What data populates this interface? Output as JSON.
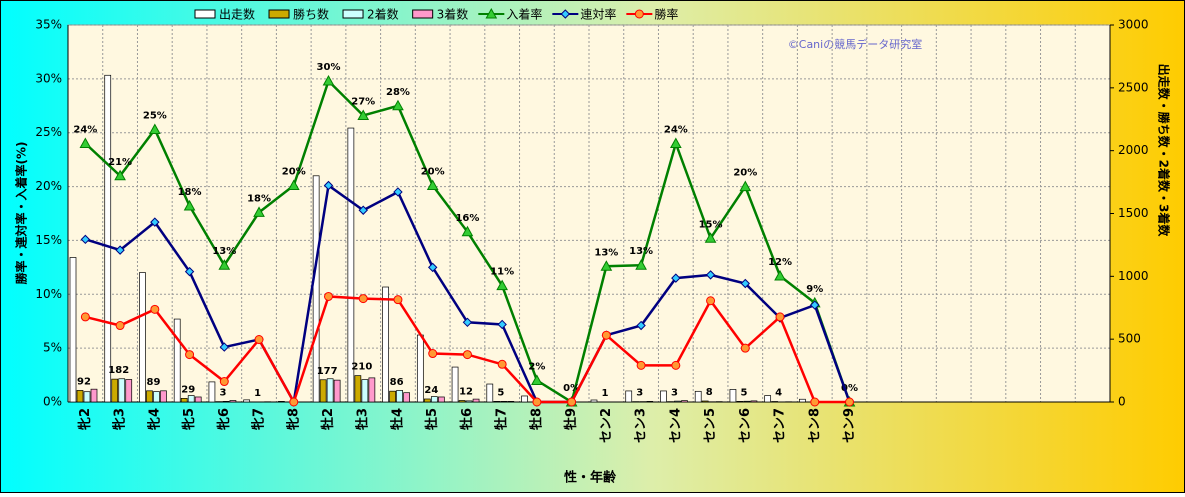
{
  "chart_data": {
    "type": "combo",
    "annotation": "©Caniの競馬データ研究室",
    "xlabel": "性・年齢",
    "ylabel": "勝率・連対率・入着率(%)",
    "y2label": "出走数・勝ち数・2着数・3着数",
    "legend": "top",
    "grid": true,
    "categories": [
      "牝2",
      "牝3",
      "牝4",
      "牝5",
      "牝6",
      "牝7",
      "牝8",
      "牡2",
      "牡3",
      "牡4",
      "牡5",
      "牡6",
      "牡7",
      "牡8",
      "牡9",
      "セン2",
      "セン3",
      "セン4",
      "セン5",
      "セン6",
      "セン7",
      "セン8",
      "セン9",
      null,
      null,
      null,
      null,
      null,
      null,
      null
    ],
    "ylim": [
      0,
      35
    ],
    "yticks": [
      {
        "value": 0,
        "label": "0%"
      },
      {
        "value": 5,
        "label": "5%"
      },
      {
        "value": 10,
        "label": "10%"
      },
      {
        "value": 15,
        "label": "15%"
      },
      {
        "value": 20,
        "label": "20%"
      },
      {
        "value": 25,
        "label": "25%"
      },
      {
        "value": 30,
        "label": "30%"
      },
      {
        "value": 35,
        "label": "35%"
      }
    ],
    "y2lim": [
      0,
      3000
    ],
    "y2ticks": [
      0,
      500,
      1000,
      1500,
      2000,
      2500,
      3000
    ],
    "series": [
      {
        "name": "出走数",
        "type": "bar",
        "axis": "y2",
        "color": "#ffffff",
        "values": [
          1150,
          2600,
          1030,
          660,
          160,
          17,
          5,
          1800,
          2180,
          915,
          533,
          278,
          143,
          48,
          5,
          16,
          88,
          88,
          85,
          100,
          51,
          22,
          3,
          null,
          null,
          null,
          null,
          null,
          null,
          null
        ]
      },
      {
        "name": "勝ち数",
        "type": "bar",
        "axis": "y2",
        "color": "#ccaa00",
        "labels": true,
        "values": [
          92,
          182,
          89,
          29,
          3,
          1,
          0,
          177,
          210,
          86,
          24,
          12,
          5,
          0,
          0,
          1,
          3,
          3,
          8,
          5,
          4,
          0,
          0,
          null,
          null,
          null,
          null,
          null,
          null,
          null
        ]
      },
      {
        "name": "2着数",
        "type": "bar",
        "axis": "y2",
        "color": "#ccffff",
        "values": [
          82,
          185,
          83,
          51,
          5,
          0,
          0,
          185,
          178,
          92,
          43,
          9,
          5,
          0,
          0,
          0,
          3,
          7,
          2,
          6,
          0,
          2,
          0,
          null,
          null,
          null,
          null,
          null,
          null,
          null
        ]
      },
      {
        "name": "3着数",
        "type": "bar",
        "axis": "y2",
        "color": "#ff99cc",
        "values": [
          102,
          179,
          89,
          40,
          12,
          2,
          1,
          174,
          192,
          74,
          40,
          23,
          5,
          1,
          0,
          1,
          5,
          11,
          3,
          9,
          2,
          0,
          0,
          null,
          null,
          null,
          null,
          null,
          null,
          null
        ]
      },
      {
        "name": "入着率",
        "type": "line",
        "axis": "y",
        "color": "#008000",
        "marker": "triangle",
        "marker_color": "#33cc33",
        "values": [
          24.0,
          21.0,
          25.3,
          18.2,
          12.7,
          17.6,
          20.1,
          29.8,
          26.6,
          27.5,
          20.1,
          15.8,
          10.8,
          2.0,
          0,
          12.6,
          12.7,
          24.0,
          15.2,
          20.0,
          11.7,
          9.2,
          0,
          null,
          null,
          null,
          null,
          null,
          null,
          null
        ],
        "value_labels": [
          "24%",
          "21%",
          "25%",
          "18%",
          "13%",
          "18%",
          "20%",
          "30%",
          "27%",
          "28%",
          "20%",
          "16%",
          "11%",
          "2%",
          "0%",
          "13%",
          "13%",
          "24%",
          "15%",
          "20%",
          "12%",
          "9%",
          "0%",
          null,
          null,
          null,
          null,
          null,
          null,
          null
        ]
      },
      {
        "name": "連対率",
        "type": "line",
        "axis": "y",
        "color": "#000080",
        "marker": "diamond",
        "marker_color": "#33ccff",
        "values": [
          15.1,
          14.1,
          16.7,
          12.1,
          5.1,
          5.8,
          0,
          20.1,
          17.8,
          19.5,
          12.5,
          7.4,
          7.2,
          0,
          0,
          6.2,
          7.1,
          11.5,
          11.8,
          11.0,
          7.8,
          9.0,
          0,
          null,
          null,
          null,
          null,
          null,
          null,
          null
        ]
      },
      {
        "name": "勝率",
        "type": "line",
        "axis": "y",
        "color": "#ff0000",
        "marker": "circle",
        "marker_color": "#ff9933",
        "values": [
          7.9,
          7.1,
          8.6,
          4.4,
          1.9,
          5.8,
          0,
          9.8,
          9.6,
          9.5,
          4.5,
          4.4,
          3.5,
          0,
          0,
          6.2,
          3.4,
          3.4,
          9.4,
          5.0,
          7.9,
          0,
          0,
          null,
          null,
          null,
          null,
          null,
          null,
          null
        ]
      }
    ]
  }
}
